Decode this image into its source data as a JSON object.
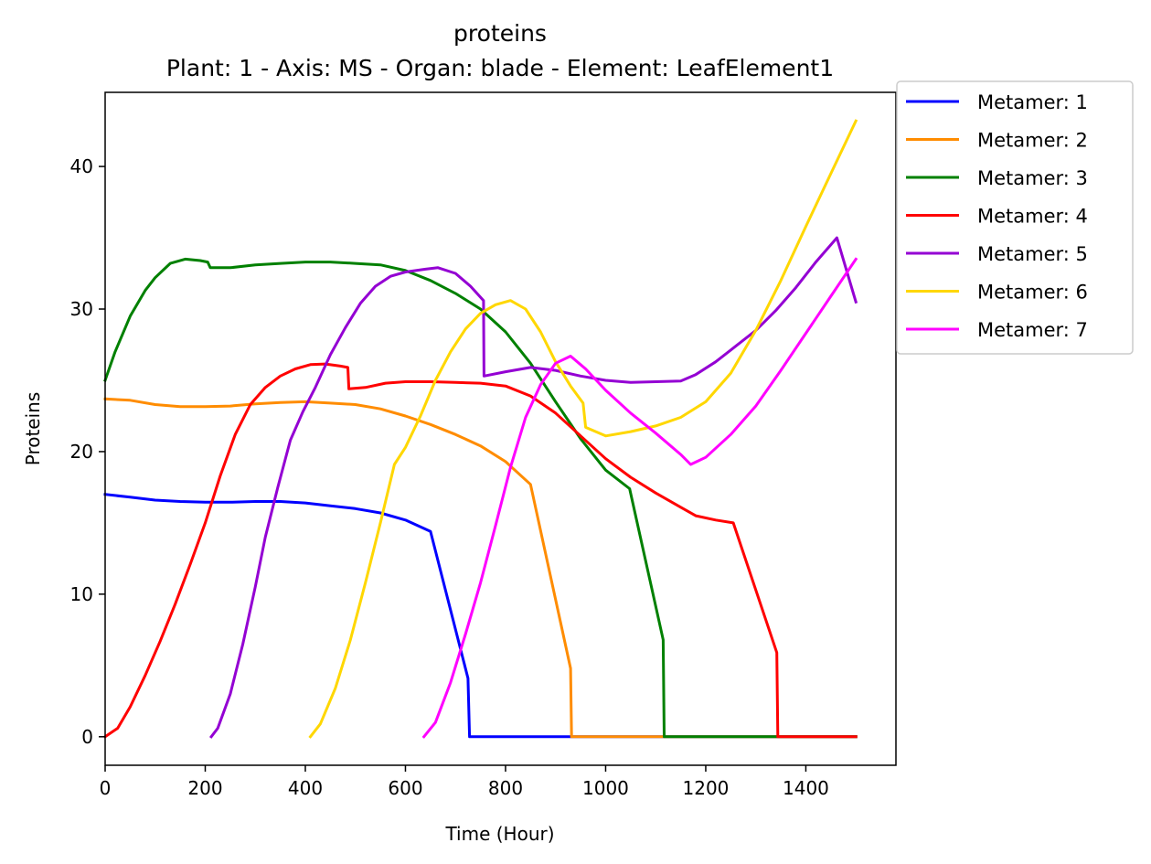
{
  "chart_data": {
    "type": "line",
    "title": "proteins",
    "subtitle": "Plant: 1 - Axis: MS - Organ: blade - Element: LeafElement1",
    "xlabel": "Time (Hour)",
    "ylabel": "Proteins",
    "xlim": [
      0,
      1580
    ],
    "ylim": [
      -2,
      45.2
    ],
    "xticks": [
      0,
      200,
      400,
      600,
      800,
      1000,
      1200,
      1400
    ],
    "yticks": [
      0,
      10,
      20,
      30,
      40
    ],
    "grid": false,
    "legend": "outside-top-right",
    "series": [
      {
        "name": "Metamer: 1",
        "color": "#0000ff",
        "points": [
          [
            0,
            17.0
          ],
          [
            50,
            16.8
          ],
          [
            100,
            16.6
          ],
          [
            150,
            16.5
          ],
          [
            200,
            16.45
          ],
          [
            250,
            16.45
          ],
          [
            300,
            16.5
          ],
          [
            350,
            16.5
          ],
          [
            400,
            16.4
          ],
          [
            450,
            16.2
          ],
          [
            500,
            16.0
          ],
          [
            550,
            15.7
          ],
          [
            600,
            15.2
          ],
          [
            650,
            14.4
          ],
          [
            725,
            4.1
          ],
          [
            728,
            0
          ],
          [
            1500,
            0
          ]
        ]
      },
      {
        "name": "Metamer: 2",
        "color": "#ff8c00",
        "points": [
          [
            0,
            23.7
          ],
          [
            50,
            23.6
          ],
          [
            100,
            23.3
          ],
          [
            150,
            23.15
          ],
          [
            200,
            23.15
          ],
          [
            250,
            23.2
          ],
          [
            300,
            23.35
          ],
          [
            350,
            23.45
          ],
          [
            400,
            23.5
          ],
          [
            450,
            23.4
          ],
          [
            500,
            23.3
          ],
          [
            550,
            23.0
          ],
          [
            600,
            22.5
          ],
          [
            650,
            21.9
          ],
          [
            700,
            21.2
          ],
          [
            750,
            20.4
          ],
          [
            800,
            19.3
          ],
          [
            850,
            17.7
          ],
          [
            930,
            4.8
          ],
          [
            932,
            0
          ],
          [
            1500,
            0
          ]
        ]
      },
      {
        "name": "Metamer: 3",
        "color": "#008000",
        "points": [
          [
            0,
            25.0
          ],
          [
            20,
            27.0
          ],
          [
            50,
            29.5
          ],
          [
            80,
            31.3
          ],
          [
            100,
            32.2
          ],
          [
            130,
            33.2
          ],
          [
            160,
            33.5
          ],
          [
            190,
            33.4
          ],
          [
            205,
            33.3
          ],
          [
            210,
            32.9
          ],
          [
            250,
            32.9
          ],
          [
            300,
            33.1
          ],
          [
            350,
            33.2
          ],
          [
            400,
            33.3
          ],
          [
            450,
            33.3
          ],
          [
            500,
            33.2
          ],
          [
            550,
            33.1
          ],
          [
            600,
            32.7
          ],
          [
            650,
            32.0
          ],
          [
            700,
            31.1
          ],
          [
            750,
            30.0
          ],
          [
            800,
            28.4
          ],
          [
            850,
            26.2
          ],
          [
            900,
            23.5
          ],
          [
            950,
            20.9
          ],
          [
            1000,
            18.7
          ],
          [
            1048,
            17.4
          ],
          [
            1115,
            6.8
          ],
          [
            1117,
            0
          ],
          [
            1500,
            0
          ]
        ]
      },
      {
        "name": "Metamer: 4",
        "color": "#ff0000",
        "points": [
          [
            0,
            0.0
          ],
          [
            25,
            0.6
          ],
          [
            50,
            2.1
          ],
          [
            80,
            4.3
          ],
          [
            110,
            6.7
          ],
          [
            140,
            9.3
          ],
          [
            170,
            12.1
          ],
          [
            200,
            15.0
          ],
          [
            230,
            18.3
          ],
          [
            260,
            21.2
          ],
          [
            290,
            23.3
          ],
          [
            320,
            24.5
          ],
          [
            350,
            25.3
          ],
          [
            380,
            25.8
          ],
          [
            410,
            26.1
          ],
          [
            440,
            26.15
          ],
          [
            470,
            26.0
          ],
          [
            485,
            25.9
          ],
          [
            487,
            24.4
          ],
          [
            520,
            24.5
          ],
          [
            560,
            24.8
          ],
          [
            600,
            24.9
          ],
          [
            650,
            24.9
          ],
          [
            700,
            24.85
          ],
          [
            750,
            24.8
          ],
          [
            800,
            24.6
          ],
          [
            850,
            23.9
          ],
          [
            900,
            22.7
          ],
          [
            950,
            21.1
          ],
          [
            1000,
            19.5
          ],
          [
            1050,
            18.2
          ],
          [
            1100,
            17.1
          ],
          [
            1150,
            16.1
          ],
          [
            1180,
            15.5
          ],
          [
            1220,
            15.2
          ],
          [
            1255,
            15.0
          ],
          [
            1342,
            5.9
          ],
          [
            1344,
            0
          ],
          [
            1500,
            0
          ]
        ]
      },
      {
        "name": "Metamer: 5",
        "color": "#9400d3",
        "points": [
          [
            212,
            0.0
          ],
          [
            225,
            0.6
          ],
          [
            250,
            3.0
          ],
          [
            275,
            6.5
          ],
          [
            300,
            10.5
          ],
          [
            320,
            14.0
          ],
          [
            345,
            17.5
          ],
          [
            370,
            20.8
          ],
          [
            395,
            22.8
          ],
          [
            420,
            24.5
          ],
          [
            450,
            26.8
          ],
          [
            480,
            28.7
          ],
          [
            510,
            30.4
          ],
          [
            540,
            31.6
          ],
          [
            570,
            32.3
          ],
          [
            600,
            32.6
          ],
          [
            640,
            32.8
          ],
          [
            665,
            32.9
          ],
          [
            700,
            32.5
          ],
          [
            730,
            31.6
          ],
          [
            756,
            30.6
          ],
          [
            757,
            25.3
          ],
          [
            800,
            25.6
          ],
          [
            850,
            25.9
          ],
          [
            900,
            25.7
          ],
          [
            950,
            25.3
          ],
          [
            1000,
            25.0
          ],
          [
            1050,
            24.85
          ],
          [
            1100,
            24.9
          ],
          [
            1150,
            24.95
          ],
          [
            1180,
            25.4
          ],
          [
            1220,
            26.3
          ],
          [
            1260,
            27.4
          ],
          [
            1300,
            28.5
          ],
          [
            1340,
            29.9
          ],
          [
            1380,
            31.5
          ],
          [
            1420,
            33.3
          ],
          [
            1462,
            35.0
          ],
          [
            1500,
            30.5
          ]
        ]
      },
      {
        "name": "Metamer: 6",
        "color": "#ffd700",
        "points": [
          [
            410,
            0.0
          ],
          [
            430,
            0.9
          ],
          [
            460,
            3.4
          ],
          [
            490,
            6.8
          ],
          [
            520,
            10.8
          ],
          [
            550,
            15.0
          ],
          [
            578,
            19.1
          ],
          [
            600,
            20.3
          ],
          [
            630,
            22.5
          ],
          [
            660,
            25.0
          ],
          [
            690,
            27.0
          ],
          [
            720,
            28.6
          ],
          [
            750,
            29.7
          ],
          [
            780,
            30.3
          ],
          [
            810,
            30.6
          ],
          [
            840,
            30.0
          ],
          [
            870,
            28.4
          ],
          [
            900,
            26.3
          ],
          [
            930,
            24.6
          ],
          [
            955,
            23.4
          ],
          [
            960,
            21.7
          ],
          [
            1000,
            21.1
          ],
          [
            1050,
            21.4
          ],
          [
            1100,
            21.8
          ],
          [
            1150,
            22.4
          ],
          [
            1200,
            23.5
          ],
          [
            1250,
            25.5
          ],
          [
            1300,
            28.5
          ],
          [
            1350,
            32.0
          ],
          [
            1400,
            35.8
          ],
          [
            1450,
            39.5
          ],
          [
            1500,
            43.2
          ]
        ]
      },
      {
        "name": "Metamer: 7",
        "color": "#ff00ff",
        "points": [
          [
            637,
            0.0
          ],
          [
            660,
            1.0
          ],
          [
            690,
            3.8
          ],
          [
            720,
            7.2
          ],
          [
            750,
            10.8
          ],
          [
            780,
            14.8
          ],
          [
            810,
            18.9
          ],
          [
            840,
            22.4
          ],
          [
            870,
            24.7
          ],
          [
            900,
            26.2
          ],
          [
            930,
            26.7
          ],
          [
            960,
            25.8
          ],
          [
            1000,
            24.3
          ],
          [
            1050,
            22.7
          ],
          [
            1100,
            21.3
          ],
          [
            1150,
            19.8
          ],
          [
            1170,
            19.1
          ],
          [
            1200,
            19.6
          ],
          [
            1250,
            21.2
          ],
          [
            1300,
            23.2
          ],
          [
            1350,
            25.7
          ],
          [
            1400,
            28.3
          ],
          [
            1450,
            30.9
          ],
          [
            1500,
            33.5
          ]
        ]
      }
    ]
  }
}
